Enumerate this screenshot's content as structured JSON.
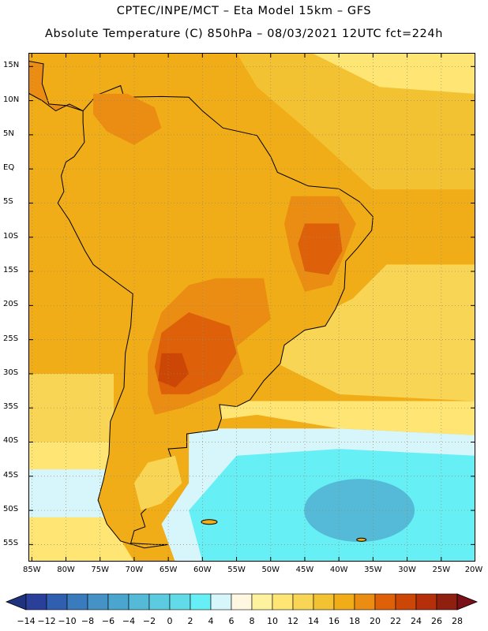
{
  "header": {
    "line1": "CPTEC/INPE/MCT –  Eta Model 15km – GFS",
    "line2": "Absolute Temperature (C) 850hPa – 08/03/2021 12UTC fct=224h"
  },
  "axes": {
    "lat_labels": [
      "15N",
      "10N",
      "5N",
      "EQ",
      "5S",
      "10S",
      "15S",
      "20S",
      "25S",
      "30S",
      "35S",
      "40S",
      "45S",
      "50S",
      "55S"
    ],
    "lat_values": [
      15,
      10,
      5,
      0,
      -5,
      -10,
      -15,
      -20,
      -25,
      -30,
      -35,
      -40,
      -45,
      -50,
      -55
    ],
    "lon_labels": [
      "85W",
      "80W",
      "75W",
      "70W",
      "65W",
      "60W",
      "55W",
      "50W",
      "45W",
      "40W",
      "35W",
      "30W",
      "25W",
      "20W"
    ],
    "lon_values": [
      -85,
      -80,
      -75,
      -70,
      -65,
      -60,
      -55,
      -50,
      -45,
      -40,
      -35,
      -30,
      -25,
      -20
    ],
    "lat_range": [
      -57.5,
      17
    ],
    "lon_range": [
      -85.5,
      -20
    ],
    "grid": "dotted"
  },
  "colorbar": {
    "labels": [
      "-14",
      "-12",
      "-10",
      "-8",
      "-6",
      "-4",
      "-2",
      "0",
      "2",
      "4",
      "6",
      "8",
      "10",
      "12",
      "14",
      "16",
      "18",
      "20",
      "22",
      "24",
      "26",
      "28"
    ],
    "colors": [
      "#2a3f9a",
      "#2f5fae",
      "#3a7bbd",
      "#4592c6",
      "#4aa6cf",
      "#54bad8",
      "#5ccbe0",
      "#62dbe9",
      "#66f0f5",
      "#d6f6fb",
      "#fff7e0",
      "#fff29e",
      "#ffe574",
      "#f9d555",
      "#f3c232",
      "#f0ad17",
      "#ea8d12",
      "#de6008",
      "#cc4605",
      "#b5300a",
      "#8f2010"
    ],
    "under_color": "#1f3280",
    "over_color": "#7a1018"
  },
  "map_colors": {
    "ocean_north": "#f0ad17",
    "ocean_northeast": "#f3c232",
    "ocean_mid": "#f9d555",
    "ocean_south_light": "#ffe574",
    "cold_band": "#d6f6fb",
    "cold_core": "#66f0f5",
    "cold_deep": "#54bad8",
    "land_base": "#f0ad17",
    "land_warm": "#ea8d12",
    "land_hot": "#de6008",
    "land_hotter": "#cc4605",
    "coast_line": "#000000"
  }
}
